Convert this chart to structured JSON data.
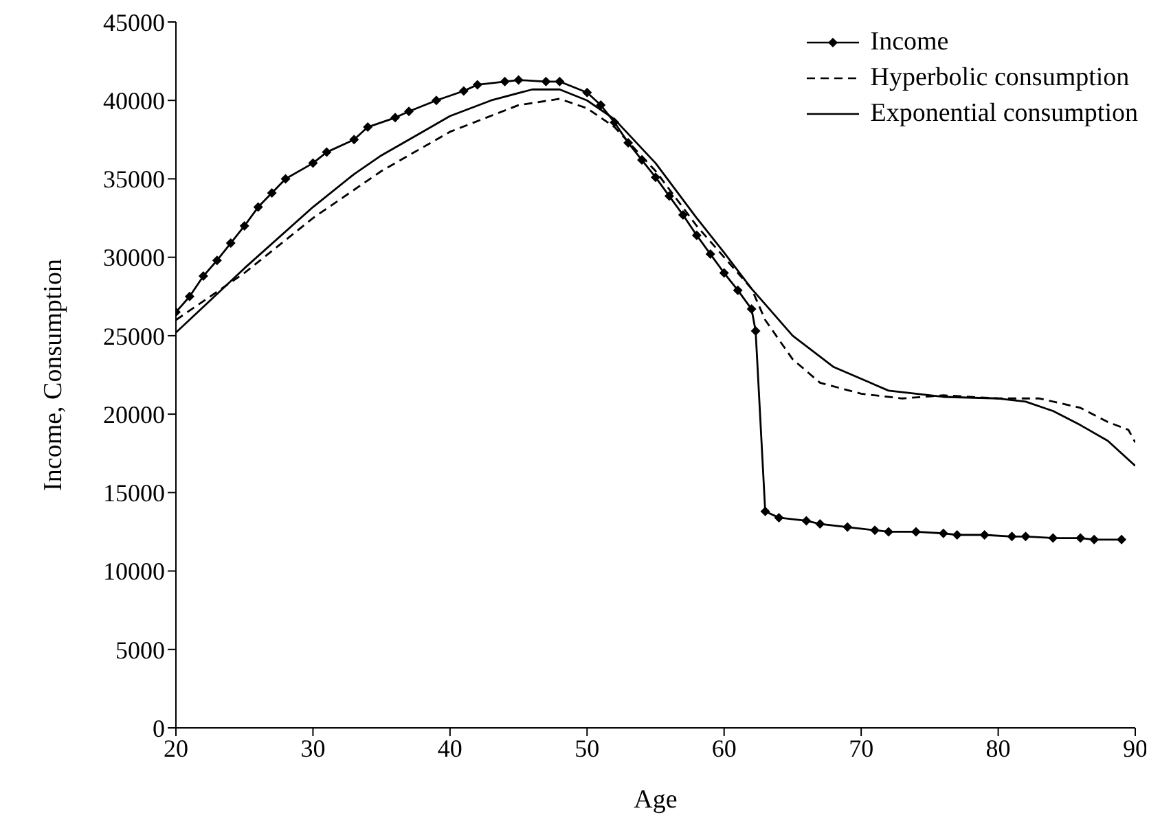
{
  "chart_data": {
    "type": "line",
    "xlabel": "Age",
    "ylabel": "Income, Consumption",
    "xlim": [
      20,
      90
    ],
    "xticks": [
      20,
      30,
      40,
      50,
      60,
      70,
      80,
      90
    ],
    "ylim": [
      0,
      45000
    ],
    "yticks": [
      0,
      5000,
      10000,
      15000,
      20000,
      25000,
      30000,
      35000,
      40000,
      45000
    ],
    "legend": "top right",
    "series": [
      {
        "name": "Income",
        "color": "#000000",
        "marker": "diamond",
        "line_style": "solid",
        "x": [
          20,
          21,
          22,
          23,
          24,
          25,
          26,
          27,
          28,
          30,
          31,
          33,
          34,
          36,
          37,
          39,
          41,
          42,
          44,
          45,
          47,
          48,
          50,
          51,
          52,
          53,
          54,
          55,
          56,
          57,
          58,
          59,
          60,
          61,
          62,
          62.3,
          63,
          64,
          66,
          67,
          69,
          71,
          72,
          74,
          76,
          77,
          79,
          81,
          82,
          84,
          86,
          87,
          89
        ],
        "values": [
          26500,
          27500,
          28800,
          29800,
          30900,
          32000,
          33200,
          34100,
          35000,
          36000,
          36700,
          37500,
          38300,
          38900,
          39300,
          40000,
          40600,
          41000,
          41200,
          41300,
          41200,
          41200,
          40500,
          39700,
          38600,
          37300,
          36200,
          35100,
          33900,
          32700,
          31400,
          30200,
          29000,
          27900,
          26700,
          25300,
          13800,
          13400,
          13200,
          13000,
          12800,
          12600,
          12500,
          12500,
          12400,
          12300,
          12300,
          12200,
          12200,
          12100,
          12100,
          12000,
          12000
        ]
      },
      {
        "name": "Hyperbolic consumption",
        "color": "#000000",
        "marker": "none",
        "line_style": "dashed",
        "x": [
          20,
          25,
          30,
          35,
          40,
          45,
          48,
          50,
          52,
          55,
          58,
          60,
          62,
          63,
          65,
          67,
          70,
          73,
          76,
          80,
          83,
          86,
          88,
          89.5,
          90
        ],
        "values": [
          26000,
          29000,
          32500,
          35500,
          38000,
          39700,
          40100,
          39500,
          38300,
          35500,
          32000,
          30000,
          28000,
          26000,
          23500,
          22000,
          21300,
          21000,
          21200,
          21000,
          21000,
          20400,
          19500,
          19000,
          18200
        ]
      },
      {
        "name": "Exponential consumption",
        "color": "#000000",
        "marker": "none",
        "line_style": "solid",
        "x": [
          20,
          25,
          30,
          33,
          35,
          38,
          40,
          43,
          46,
          48,
          50,
          52,
          55,
          58,
          60,
          62,
          63,
          65,
          68,
          72,
          76,
          80,
          82,
          84,
          86,
          88,
          89,
          90
        ],
        "values": [
          25200,
          29300,
          33200,
          35300,
          36500,
          38000,
          39000,
          40000,
          40700,
          40700,
          40000,
          38800,
          36000,
          32500,
          30300,
          28000,
          27000,
          25000,
          23000,
          21500,
          21100,
          21000,
          20800,
          20200,
          19300,
          18300,
          17500,
          16700
        ]
      }
    ]
  }
}
